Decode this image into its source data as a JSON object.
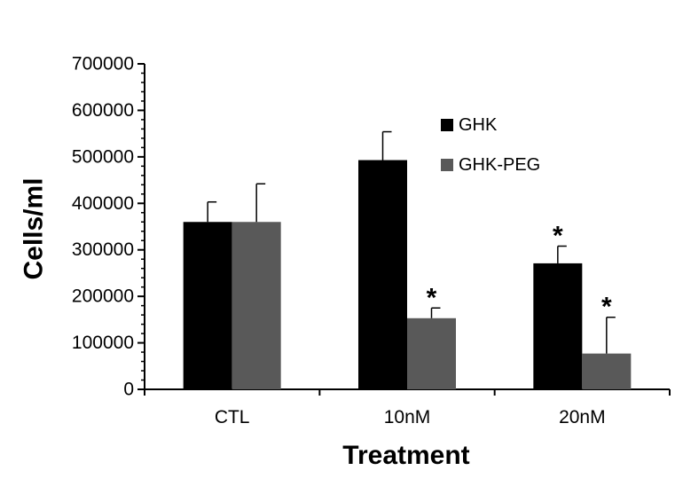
{
  "chart_data": {
    "type": "bar",
    "categories": [
      "CTL",
      "10nM",
      "20nM"
    ],
    "series": [
      {
        "name": "GHK",
        "color": "#000000",
        "values": [
          360000,
          493000,
          271000
        ],
        "error": [
          43000,
          61000,
          37000
        ],
        "significance": [
          "",
          "",
          "*"
        ]
      },
      {
        "name": "GHK-PEG",
        "color": "#595959",
        "values": [
          360000,
          153000,
          77000
        ],
        "error": [
          82000,
          22000,
          78000
        ],
        "significance": [
          "",
          "*",
          "*"
        ]
      }
    ],
    "xlabel": "Treatment",
    "ylabel": "Cells/ml",
    "ylim": [
      0,
      700000
    ],
    "yticks": [
      "0",
      "100000",
      "200000",
      "300000",
      "400000",
      "500000",
      "600000",
      "700000"
    ],
    "grid": false,
    "legend_position": "top-right"
  }
}
